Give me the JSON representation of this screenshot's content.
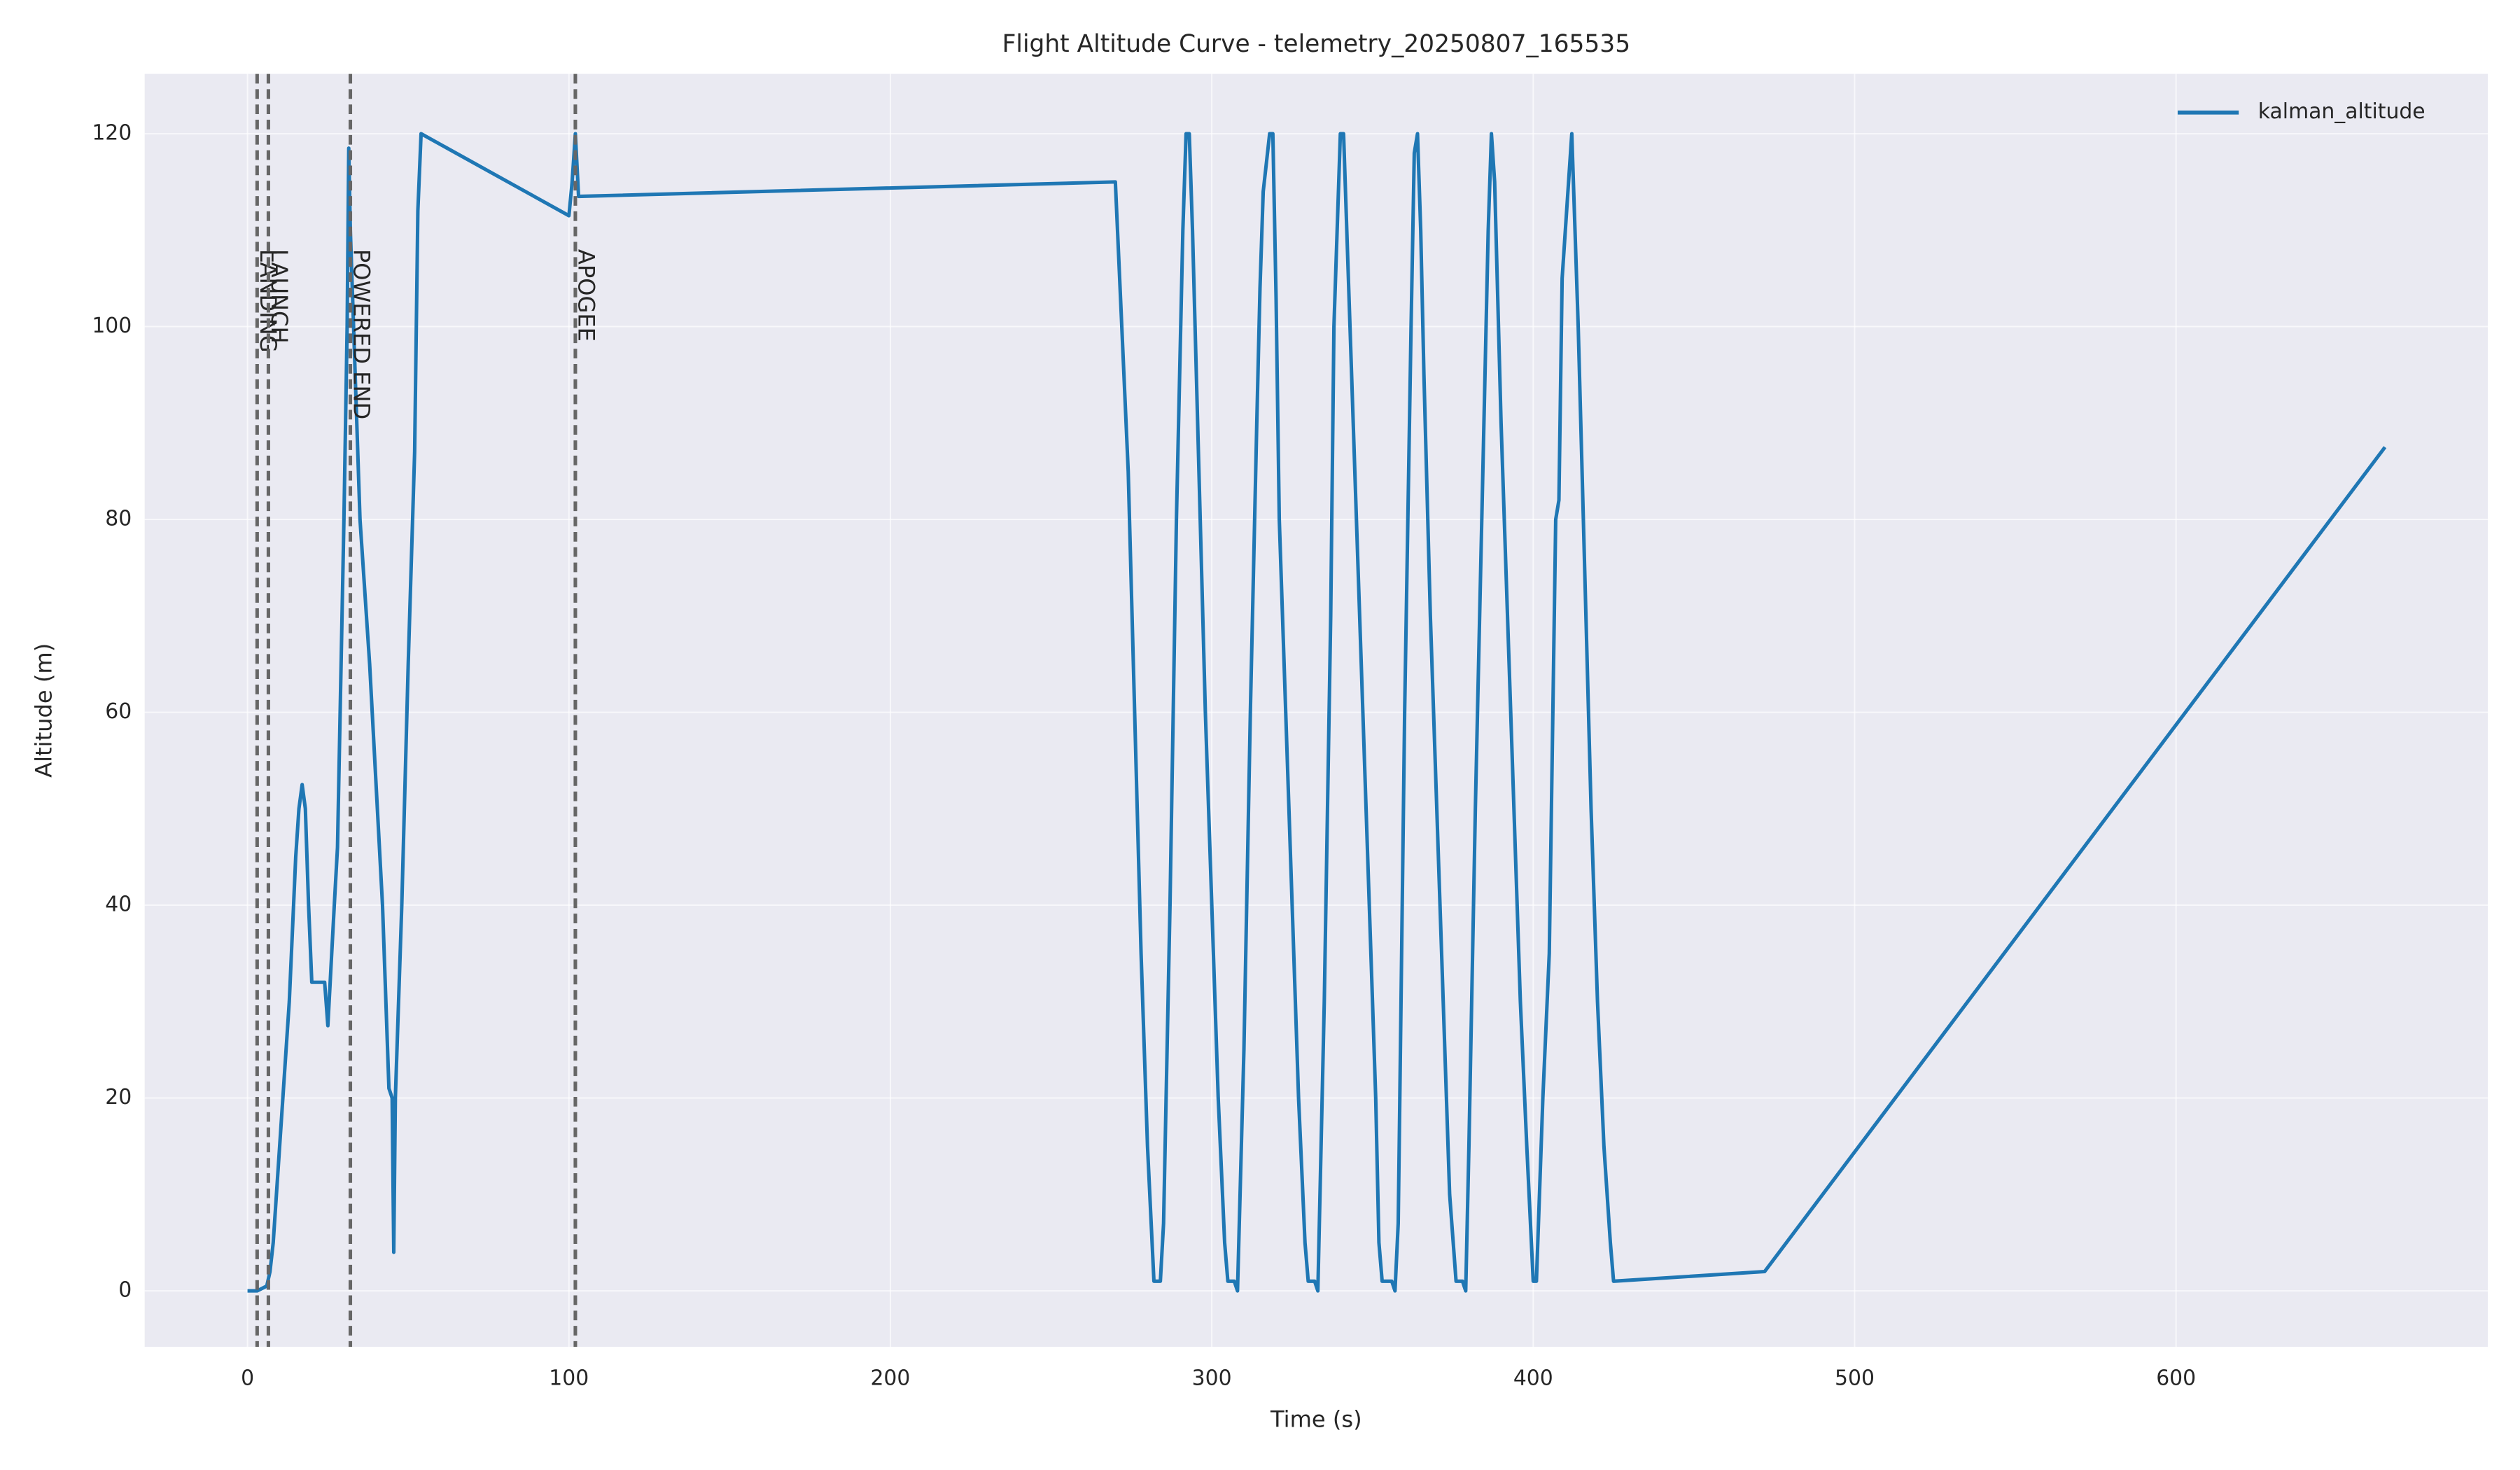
{
  "chart_data": {
    "type": "line",
    "title": "Flight Altitude Curve - telemetry_20250807_165535",
    "x_label": "Time (s)",
    "y_label": "Altitude (m)",
    "xlim": [
      -32,
      697
    ],
    "ylim": [
      -5.8,
      126.2
    ],
    "xticks": [
      0,
      100,
      200,
      300,
      400,
      500,
      600
    ],
    "yticks": [
      0,
      20,
      40,
      60,
      80,
      100,
      120
    ],
    "grid": true,
    "legend": "upper right",
    "x": [
      0,
      3,
      6,
      7,
      8,
      10,
      12,
      13,
      15,
      16,
      17,
      18,
      19,
      20,
      24,
      25,
      27,
      28,
      30,
      31,
      31.5,
      32,
      33,
      35,
      38,
      42,
      44,
      45,
      45.5,
      46,
      48,
      50,
      52,
      53,
      54,
      100,
      101,
      102,
      103,
      270,
      272,
      274,
      276,
      278,
      280,
      282,
      284,
      285,
      287,
      289,
      291,
      292,
      293,
      294,
      296,
      298,
      300,
      302,
      304,
      305,
      307,
      308,
      310,
      312,
      314,
      315,
      316,
      317,
      318,
      319,
      320,
      321,
      323,
      325,
      327,
      329,
      330,
      332,
      333,
      335,
      337,
      338,
      339,
      340,
      341,
      343,
      345,
      347,
      349,
      351,
      352,
      353,
      356,
      357,
      358,
      358.5,
      360,
      362,
      363,
      364,
      365,
      366,
      368,
      370,
      372,
      374,
      376,
      378,
      379,
      380,
      382,
      384,
      386,
      387,
      388,
      390,
      392,
      394,
      396,
      398,
      400,
      401,
      403,
      405,
      407,
      408,
      409,
      411,
      412,
      414,
      416,
      418,
      420,
      422,
      424,
      425,
      472,
      665
    ],
    "series": [
      {
        "name": "kalman_altitude",
        "color": "#1f77b4",
        "values": [
          0,
          0,
          0.5,
          2,
          5,
          15,
          25,
          30,
          45,
          50,
          52.5,
          50,
          40,
          32,
          32,
          27.5,
          40,
          46,
          80,
          100,
          118.5,
          110,
          100,
          80,
          65,
          40,
          21,
          20,
          4,
          20,
          40,
          65,
          87,
          112,
          120,
          111.5,
          115,
          120,
          113.5,
          115,
          100,
          85,
          60,
          35,
          15,
          1,
          1,
          7,
          40,
          80,
          110,
          120,
          120,
          110,
          85,
          60,
          40,
          20,
          5,
          1,
          1,
          0,
          25,
          60,
          90,
          104,
          114,
          117,
          120,
          120,
          103,
          80,
          60,
          40,
          20,
          5,
          1,
          1,
          0,
          30,
          70,
          100,
          110,
          120,
          120,
          100,
          80,
          60,
          40,
          20,
          5,
          1,
          1,
          0,
          7,
          20,
          60,
          100,
          118,
          120,
          110,
          95,
          70,
          50,
          30,
          10,
          1,
          1,
          0,
          15,
          50,
          80,
          110,
          120,
          115,
          90,
          70,
          50,
          30,
          15,
          1,
          1,
          20,
          35,
          80,
          82,
          105,
          115,
          120,
          100,
          75,
          50,
          30,
          15,
          5,
          1,
          2,
          87.5
        ]
      }
    ],
    "events": [
      {
        "label": "LANDING",
        "x": 3
      },
      {
        "label": "LAUNCH",
        "x": 6.5
      },
      {
        "label": "POWERED END",
        "x": 32
      },
      {
        "label": "APOGEE",
        "x": 102
      }
    ],
    "event_color": "#666666"
  }
}
